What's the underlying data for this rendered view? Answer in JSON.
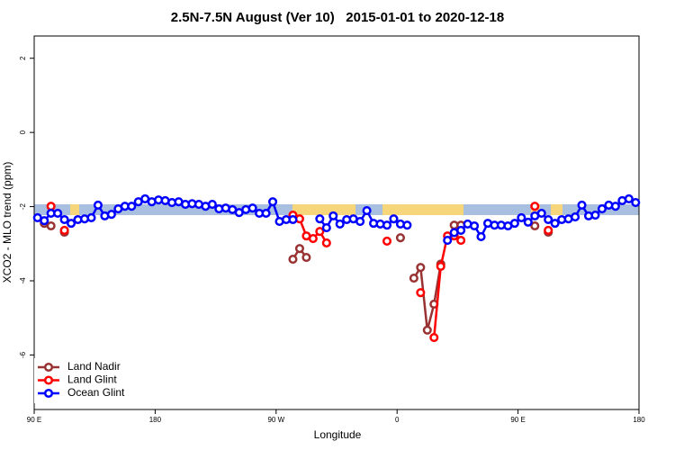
{
  "chart_data": {
    "type": "line",
    "title": "2.5N-7.5N August (Ver 10)   2015-01-01 to 2020-12-18",
    "x_label": "Longitude",
    "y_label": "XCO2 - MLO trend (ppm)",
    "xlim": [
      90,
      540
    ],
    "xticks": [
      {
        "value": 90,
        "label": "90 E"
      },
      180,
      {
        "value": 270,
        "label": "90 W"
      },
      {
        "value": 360,
        "label": "0"
      },
      {
        "value": 450,
        "label": "90 E"
      },
      {
        "value": 540,
        "label": "180"
      }
    ],
    "ylim": [
      -7.47,
      2.6
    ],
    "yticks": [
      2,
      0,
      -2,
      -4,
      -6
    ],
    "legend": "bottom-left",
    "x": [
      92.5,
      97.5,
      102.5,
      107.5,
      112.5,
      117.5,
      122.5,
      127.5,
      132.5,
      137.5,
      142.5,
      147.5,
      152.5,
      157.5,
      162.5,
      167.5,
      172.5,
      177.5,
      182.5,
      187.5,
      192.5,
      197.5,
      202.5,
      207.5,
      212.5,
      217.5,
      222.5,
      227.5,
      232.5,
      237.5,
      242.5,
      247.5,
      252.5,
      257.5,
      262.5,
      267.5,
      272.5,
      277.5,
      282.5,
      287.5,
      292.5,
      297.5,
      302.5,
      307.5,
      312.5,
      317.5,
      322.5,
      327.5,
      332.5,
      337.5,
      342.5,
      347.5,
      352.5,
      357.5,
      362.5,
      367.5,
      372.5,
      377.5,
      382.5,
      387.5,
      392.5,
      397.5,
      402.5,
      407.5,
      412.5,
      417.5,
      422.5,
      427.5,
      432.5,
      437.5,
      442.5,
      447.5,
      452.5,
      457.5,
      462.5,
      467.5,
      472.5,
      477.5,
      482.5,
      487.5,
      492.5,
      497.5,
      502.5,
      507.5,
      512.5,
      517.5,
      522.5,
      527.5,
      532.5,
      537.5
    ],
    "series": [
      {
        "name": "Land Nadir",
        "color": "#993333",
        "values": [
          null,
          -2.45,
          -2.52,
          null,
          -2.69,
          null,
          null,
          null,
          null,
          null,
          null,
          null,
          null,
          null,
          null,
          null,
          null,
          null,
          null,
          null,
          null,
          null,
          null,
          null,
          null,
          null,
          null,
          null,
          null,
          null,
          null,
          null,
          null,
          null,
          null,
          null,
          null,
          null,
          -3.42,
          -3.13,
          -3.37,
          null,
          null,
          null,
          null,
          null,
          null,
          null,
          null,
          null,
          null,
          null,
          null,
          null,
          -2.84,
          null,
          -3.93,
          -3.64,
          -5.33,
          -4.63,
          -3.55,
          null,
          -2.5,
          -2.5,
          null,
          null,
          null,
          null,
          null,
          null,
          null,
          null,
          null,
          null,
          -2.52,
          null,
          -2.69,
          null,
          null,
          null,
          null,
          null,
          null,
          null,
          null,
          null,
          null,
          null,
          null,
          null
        ]
      },
      {
        "name": "Land Glint",
        "color": "#ff0000",
        "values": [
          null,
          null,
          -1.99,
          null,
          -2.64,
          null,
          null,
          null,
          null,
          null,
          null,
          null,
          null,
          null,
          null,
          null,
          null,
          null,
          null,
          null,
          null,
          null,
          null,
          null,
          null,
          null,
          null,
          null,
          null,
          null,
          null,
          null,
          null,
          null,
          null,
          null,
          null,
          null,
          -2.23,
          -2.33,
          -2.79,
          -2.86,
          -2.67,
          -2.98,
          null,
          null,
          null,
          null,
          null,
          null,
          null,
          null,
          -2.93,
          null,
          null,
          null,
          null,
          -4.32,
          null,
          -5.53,
          -3.61,
          -2.79,
          -2.79,
          -2.91,
          null,
          null,
          null,
          null,
          null,
          null,
          null,
          null,
          null,
          null,
          -1.99,
          null,
          -2.64,
          null,
          null,
          null,
          null,
          null,
          null,
          null,
          null,
          null,
          null,
          null,
          null,
          null
        ]
      },
      {
        "name": "Ocean Glint",
        "color": "#0000ff",
        "values": [
          -2.3,
          -2.38,
          -2.18,
          -2.18,
          -2.35,
          -2.45,
          -2.35,
          -2.33,
          -2.3,
          -1.96,
          -2.25,
          -2.21,
          -2.06,
          -1.99,
          -1.99,
          -1.87,
          -1.79,
          -1.87,
          -1.82,
          -1.84,
          -1.89,
          -1.87,
          -1.94,
          -1.92,
          -1.94,
          -1.99,
          -1.94,
          -2.06,
          -2.04,
          -2.08,
          -2.16,
          -2.08,
          -2.04,
          -2.18,
          -2.18,
          -1.87,
          -2.4,
          -2.35,
          -2.35,
          null,
          null,
          null,
          -2.33,
          -2.57,
          -2.25,
          -2.47,
          -2.35,
          -2.33,
          -2.4,
          -2.11,
          -2.45,
          -2.47,
          -2.5,
          -2.33,
          -2.47,
          -2.5,
          null,
          null,
          null,
          null,
          null,
          -2.91,
          -2.7,
          -2.64,
          -2.47,
          -2.52,
          -2.81,
          -2.45,
          -2.5,
          -2.5,
          -2.52,
          -2.45,
          -2.3,
          -2.42,
          -2.25,
          -2.18,
          -2.35,
          -2.45,
          -2.35,
          -2.33,
          -2.28,
          -1.96,
          -2.25,
          -2.23,
          -2.06,
          -1.96,
          -1.99,
          -1.84,
          -1.79,
          -1.89
        ]
      }
    ]
  }
}
